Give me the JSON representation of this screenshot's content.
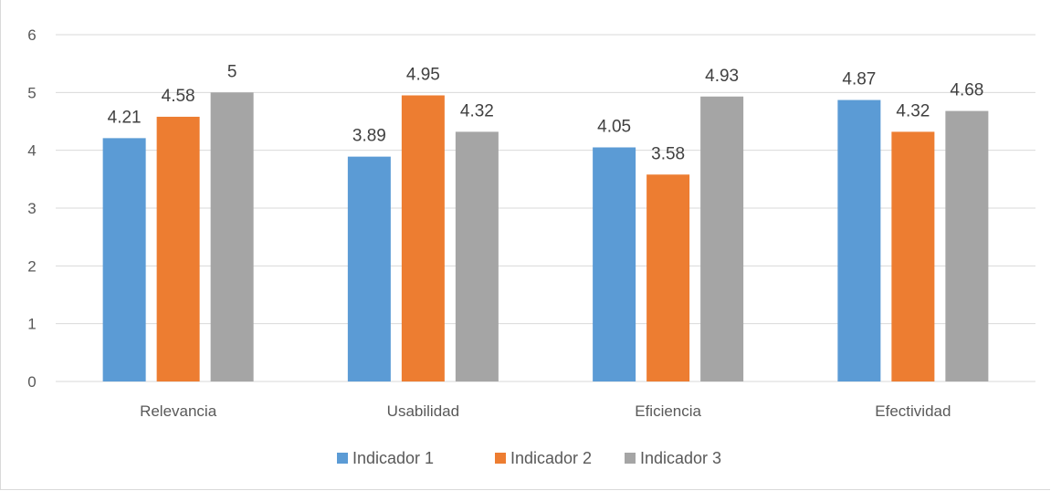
{
  "chart_data": {
    "type": "bar",
    "categories": [
      "Relevancia",
      "Usabilidad",
      "Eficiencia",
      "Efectividad"
    ],
    "series": [
      {
        "name": "Indicador 1",
        "color": "#5B9BD5",
        "values": [
          4.21,
          3.89,
          4.05,
          4.87
        ],
        "labels": [
          "4.21",
          "3.89",
          "4.05",
          "4.87"
        ]
      },
      {
        "name": "Indicador 2",
        "color": "#ED7D31",
        "values": [
          4.58,
          4.95,
          3.58,
          4.32
        ],
        "labels": [
          "4.58",
          "4.95",
          "3.58",
          "4.32"
        ]
      },
      {
        "name": "Indicador 3",
        "color": "#A5A5A5",
        "values": [
          5,
          4.32,
          4.93,
          4.68
        ],
        "labels": [
          "5",
          "4.32",
          "4.93",
          "4.68"
        ]
      }
    ],
    "yticks": [
      "0",
      "1",
      "2",
      "3",
      "4",
      "5",
      "6"
    ],
    "ylim": [
      0,
      6
    ],
    "grid": true,
    "legend": "bottom"
  }
}
